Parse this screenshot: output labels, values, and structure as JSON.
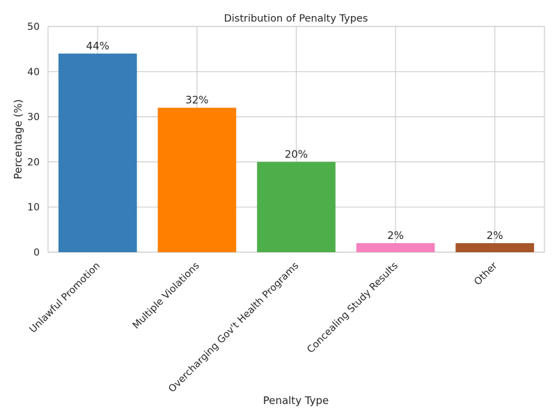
{
  "chart_data": {
    "type": "bar",
    "title": "Distribution of Penalty Types",
    "xlabel": "Penalty Type",
    "ylabel": "Percentage (%)",
    "categories": [
      "Unlawful Promotion",
      "Multiple Violations",
      "Overcharging Gov't Health Programs",
      "Concealing Study Results",
      "Other"
    ],
    "values": [
      44,
      32,
      20,
      2,
      2
    ],
    "value_labels": [
      "44%",
      "32%",
      "20%",
      "2%",
      "2%"
    ],
    "colors": [
      "#377eb8",
      "#ff7f00",
      "#4daf4a",
      "#f781bf",
      "#a65628"
    ],
    "ylim": [
      0,
      50
    ],
    "yticks": [
      0,
      10,
      20,
      30,
      40,
      50
    ],
    "grid": true,
    "legend": "none"
  }
}
